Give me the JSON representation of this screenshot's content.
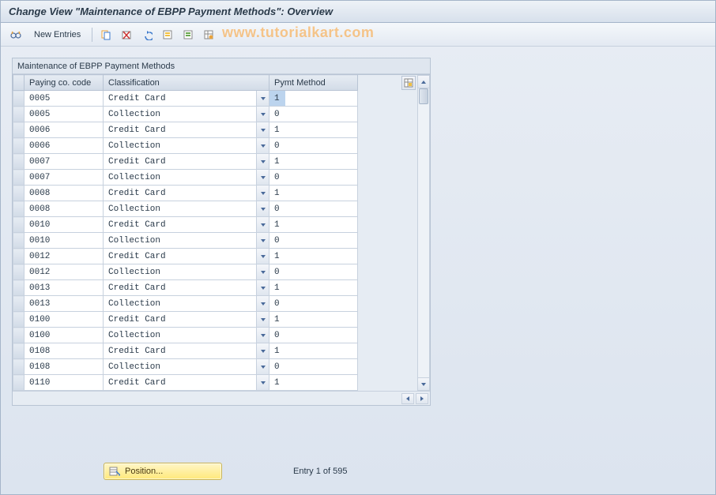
{
  "title": "Change View \"Maintenance of EBPP Payment Methods\": Overview",
  "toolbar": {
    "new_entries": "New Entries"
  },
  "watermark": "www.tutorialkart.com",
  "grid": {
    "caption": "Maintenance of EBPP Payment Methods",
    "columns": {
      "code": "Paying co. code",
      "classification": "Classification",
      "pymt": "Pymt Method"
    },
    "rows": [
      {
        "code": "0005",
        "class": "Credit Card",
        "pm": "1",
        "sel": true
      },
      {
        "code": "0005",
        "class": "Collection",
        "pm": "0"
      },
      {
        "code": "0006",
        "class": "Credit Card",
        "pm": "1"
      },
      {
        "code": "0006",
        "class": "Collection",
        "pm": "0"
      },
      {
        "code": "0007",
        "class": "Credit Card",
        "pm": "1"
      },
      {
        "code": "0007",
        "class": "Collection",
        "pm": "0"
      },
      {
        "code": "0008",
        "class": "Credit Card",
        "pm": "1"
      },
      {
        "code": "0008",
        "class": "Collection",
        "pm": "0"
      },
      {
        "code": "0010",
        "class": "Credit Card",
        "pm": "1"
      },
      {
        "code": "0010",
        "class": "Collection",
        "pm": "0"
      },
      {
        "code": "0012",
        "class": "Credit Card",
        "pm": "1"
      },
      {
        "code": "0012",
        "class": "Collection",
        "pm": "0"
      },
      {
        "code": "0013",
        "class": "Credit Card",
        "pm": "1"
      },
      {
        "code": "0013",
        "class": "Collection",
        "pm": "0"
      },
      {
        "code": "0100",
        "class": "Credit Card",
        "pm": "1"
      },
      {
        "code": "0100",
        "class": "Collection",
        "pm": "0"
      },
      {
        "code": "0108",
        "class": "Credit Card",
        "pm": "1"
      },
      {
        "code": "0108",
        "class": "Collection",
        "pm": "0"
      },
      {
        "code": "0110",
        "class": "Credit Card",
        "pm": "1"
      }
    ]
  },
  "footer": {
    "position": "Position...",
    "entry": "Entry 1 of 595"
  },
  "colors": {
    "accent": "#4a6a9a",
    "icon_orange": "#e8a33d",
    "icon_green": "#6aa84f",
    "icon_red": "#cc3333",
    "icon_blue": "#3d7acc",
    "icon_yellow": "#f0c040"
  }
}
